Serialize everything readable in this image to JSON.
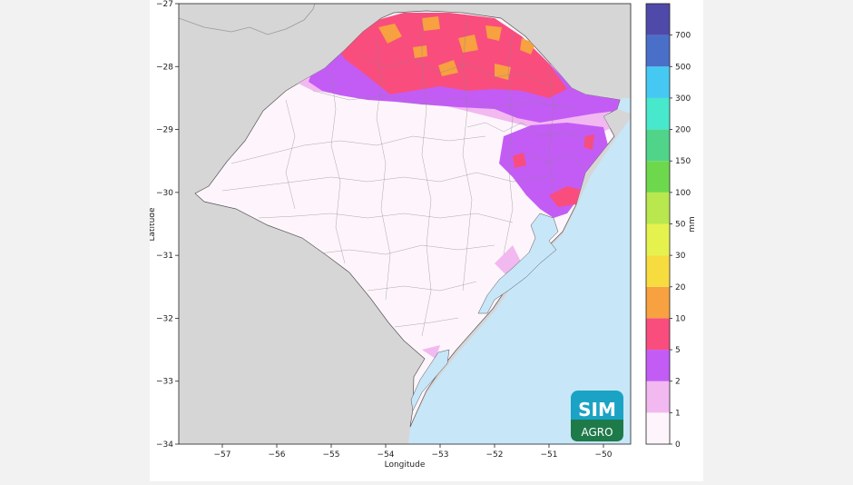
{
  "map": {
    "region": "Rio Grande do Sul",
    "xlabel": "Longitude",
    "ylabel": "Latitude",
    "x_ticks": [
      "−57",
      "−56",
      "−55",
      "−54",
      "−53",
      "−52",
      "−51",
      "−50"
    ],
    "y_ticks": [
      "−27",
      "−28",
      "−29",
      "−30",
      "−31",
      "−32",
      "−33",
      "−34"
    ],
    "lon_range": [
      -57.8,
      -49.5
    ],
    "lat_range": [
      -34,
      -27
    ]
  },
  "colorbar": {
    "unit": "mm",
    "labels": [
      "0",
      "1",
      "2",
      "5",
      "10",
      "20",
      "30",
      "50",
      "100",
      "150",
      "200",
      "300",
      "500",
      "700"
    ],
    "colors": [
      "#fdf5fb",
      "#f2b8f0",
      "#c35cf5",
      "#f94d7e",
      "#f7a140",
      "#f7dc40",
      "#e5f24d",
      "#b8e84d",
      "#6ed84d",
      "#4fd48a",
      "#48e8cc",
      "#45c9f2",
      "#4a6fc9",
      "#4f4aa9"
    ]
  },
  "logo": {
    "line1": "SIM",
    "line2": "AGRO"
  },
  "colors": {
    "ocean": "#c7e6f8",
    "land_outside": "#d6d6d6",
    "state_base": "#fdf5fb",
    "rain_1_2": "#f2b8f0",
    "rain_2_5": "#c35cf5",
    "rain_5_10": "#f94d7e",
    "rain_10_20": "#f7a140"
  }
}
